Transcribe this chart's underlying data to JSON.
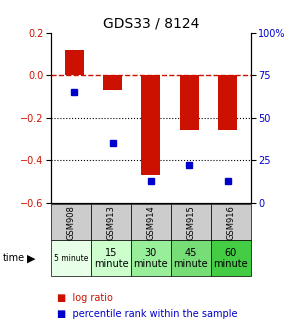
{
  "title": "GDS33 / 8124",
  "samples": [
    "GSM908",
    "GSM913",
    "GSM914",
    "GSM915",
    "GSM916"
  ],
  "time_labels_line1": [
    "5 minute",
    "15",
    "30",
    "45",
    "60"
  ],
  "time_labels_line2": [
    "",
    "minute",
    "minute",
    "minute",
    "minute"
  ],
  "time_small_font": [
    true,
    false,
    false,
    false,
    false
  ],
  "log_ratios": [
    0.12,
    -0.07,
    -0.47,
    -0.26,
    -0.26
  ],
  "percentiles": [
    65,
    35,
    13,
    22,
    13
  ],
  "ylim_left": [
    -0.6,
    0.2
  ],
  "ylim_right": [
    0,
    100
  ],
  "yticks_left": [
    0.2,
    0.0,
    -0.2,
    -0.4,
    -0.6
  ],
  "yticks_right": [
    100,
    75,
    50,
    25,
    0
  ],
  "bar_color": "#cc1100",
  "dot_color": "#0000cc",
  "bg_color": "#ffffff",
  "plot_bg": "#ffffff",
  "time_bg_colors": [
    "#e8ffe8",
    "#ccffcc",
    "#99ee99",
    "#77dd77",
    "#44cc44"
  ],
  "sample_bg_color": "#cccccc",
  "legend_bar_label": "log ratio",
  "legend_dot_label": "percentile rank within the sample"
}
